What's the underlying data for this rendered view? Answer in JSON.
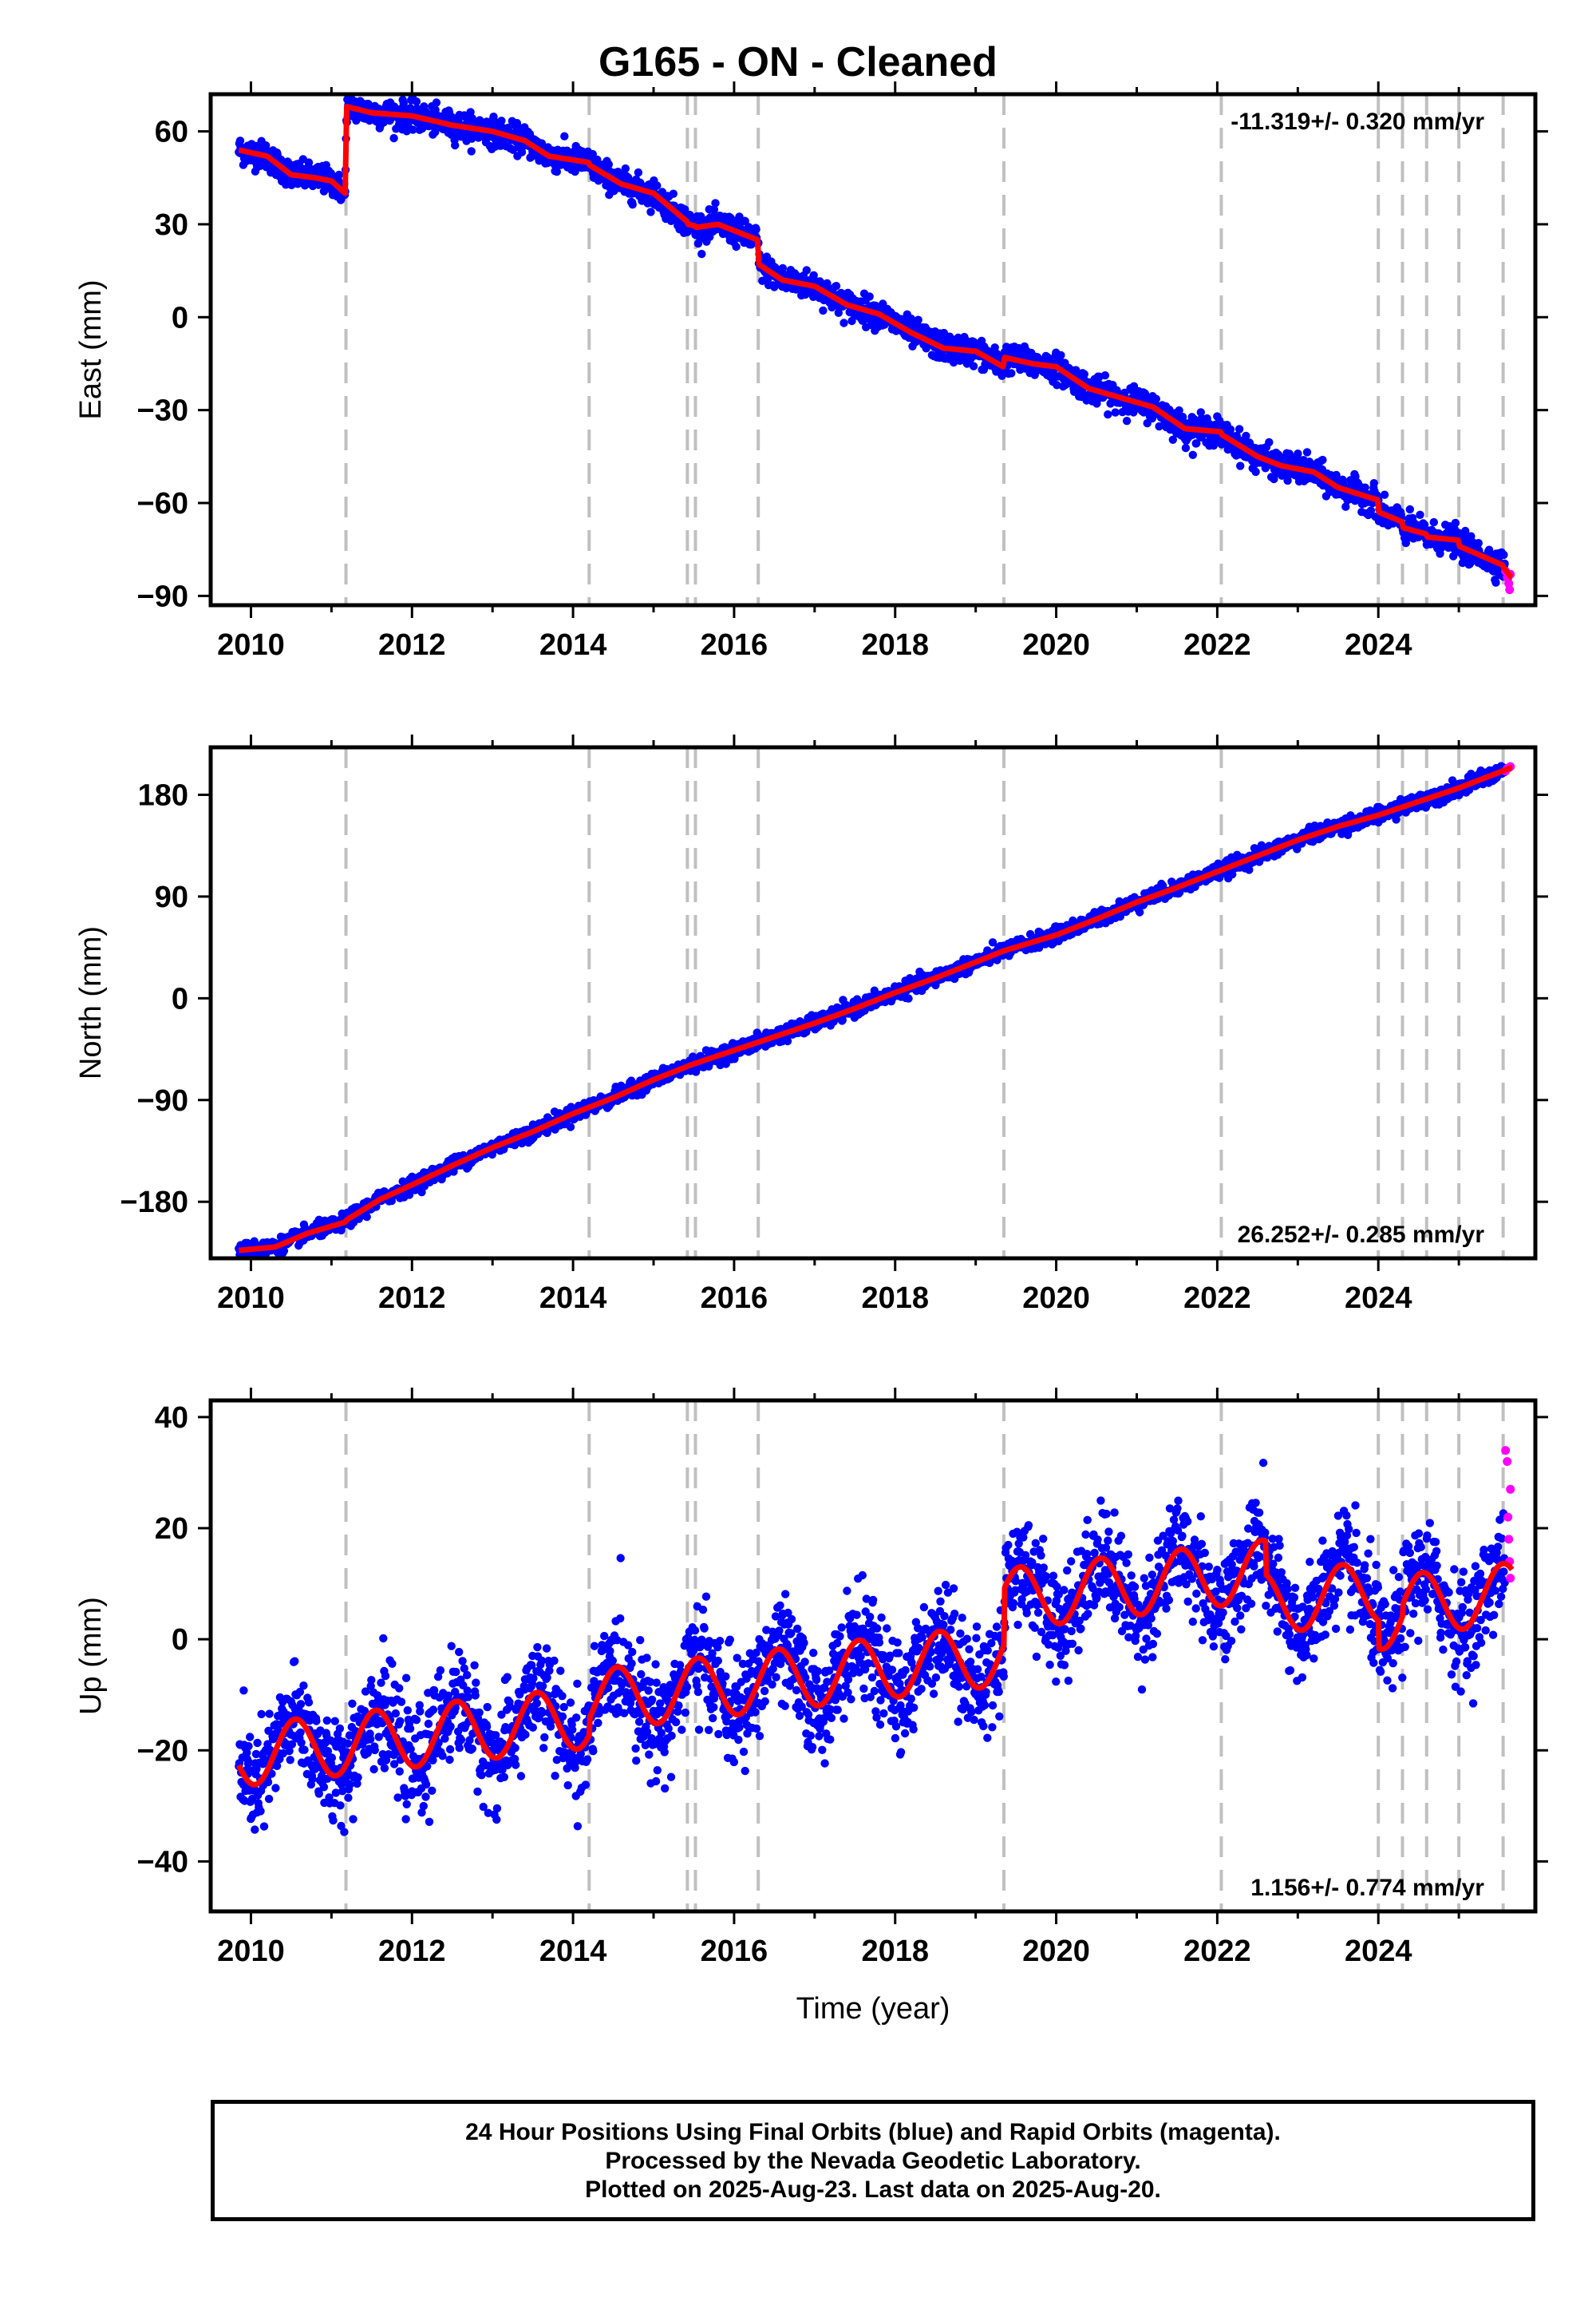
{
  "title": "G165  - ON - Cleaned",
  "footer": {
    "line1": "24 Hour Positions Using Final Orbits (blue) and Rapid Orbits (magenta).",
    "line2": "Processed by the Nevada Geodetic Laboratory.",
    "line3": "Plotted on 2025-Aug-23. Last data on 2025-Aug-20."
  },
  "colors": {
    "final": "#0000ff",
    "rapid": "#ff00ff",
    "model": "#ff0000",
    "events": "#c0c0c0"
  },
  "chart_data": [
    {
      "type": "scatter",
      "ylabel": "East (mm)",
      "rate": "-11.319+/- 0.320 mm/yr",
      "rate_position": "top-right",
      "xlim": [
        2009.5,
        2025.95
      ],
      "ylim": [
        -93,
        72
      ],
      "xticks": [
        2010,
        2012,
        2014,
        2016,
        2018,
        2020,
        2022,
        2024
      ],
      "xtick_labels": [
        "2010",
        "2012",
        "2014",
        "2016",
        "2018",
        "2020",
        "2022",
        "2024"
      ],
      "yticks": [
        60,
        30,
        0,
        -30,
        -60,
        -90
      ],
      "ytick_labels": [
        "60",
        "30",
        "0",
        "−30",
        "−60",
        "−90"
      ],
      "events": [
        2011.18,
        2014.2,
        2015.42,
        2015.52,
        2016.3,
        2019.35,
        2022.05,
        2024.0,
        2024.3,
        2024.6,
        2025.0,
        2025.55
      ],
      "model": [
        [
          2009.85,
          54
        ],
        [
          2010.2,
          52
        ],
        [
          2010.5,
          46
        ],
        [
          2010.8,
          45
        ],
        [
          2011.0,
          44
        ],
        [
          2011.17,
          40
        ],
        [
          2011.19,
          68
        ],
        [
          2011.5,
          66
        ],
        [
          2012.0,
          65
        ],
        [
          2012.5,
          62
        ],
        [
          2013.0,
          60
        ],
        [
          2013.4,
          57
        ],
        [
          2013.7,
          52
        ],
        [
          2014.19,
          50
        ],
        [
          2014.21,
          49
        ],
        [
          2014.6,
          43
        ],
        [
          2015.0,
          40
        ],
        [
          2015.41,
          31
        ],
        [
          2015.43,
          30
        ],
        [
          2015.51,
          29.5
        ],
        [
          2015.53,
          29
        ],
        [
          2015.8,
          30
        ],
        [
          2016.29,
          25
        ],
        [
          2016.31,
          17
        ],
        [
          2016.6,
          12
        ],
        [
          2017.0,
          10
        ],
        [
          2017.4,
          4
        ],
        [
          2017.8,
          1
        ],
        [
          2018.2,
          -5
        ],
        [
          2018.6,
          -10
        ],
        [
          2019.0,
          -11
        ],
        [
          2019.34,
          -16
        ],
        [
          2019.36,
          -13
        ],
        [
          2019.7,
          -15
        ],
        [
          2020.0,
          -16
        ],
        [
          2020.4,
          -23
        ],
        [
          2020.8,
          -26
        ],
        [
          2021.2,
          -29
        ],
        [
          2021.6,
          -36
        ],
        [
          2022.04,
          -37
        ],
        [
          2022.06,
          -38
        ],
        [
          2022.5,
          -45
        ],
        [
          2022.8,
          -48
        ],
        [
          2023.2,
          -50
        ],
        [
          2023.5,
          -55
        ],
        [
          2023.99,
          -59
        ],
        [
          2024.01,
          -63
        ],
        [
          2024.29,
          -66
        ],
        [
          2024.31,
          -68
        ],
        [
          2024.59,
          -70
        ],
        [
          2024.61,
          -71
        ],
        [
          2024.99,
          -72
        ],
        [
          2025.01,
          -74
        ],
        [
          2025.54,
          -80
        ],
        [
          2025.56,
          -81
        ],
        [
          2025.65,
          -84
        ]
      ],
      "scatter_sigma": 2.2,
      "last_rapid": [
        [
          2025.58,
          -82
        ],
        [
          2025.6,
          -84
        ],
        [
          2025.62,
          -86
        ],
        [
          2025.63,
          -88
        ],
        [
          2025.64,
          -83
        ]
      ]
    },
    {
      "type": "scatter",
      "ylabel": "North (mm)",
      "rate": "26.252+/- 0.285 mm/yr",
      "rate_position": "bottom-right",
      "xlim": [
        2009.5,
        2025.95
      ],
      "ylim": [
        -230,
        222
      ],
      "xticks": [
        2010,
        2012,
        2014,
        2016,
        2018,
        2020,
        2022,
        2024
      ],
      "xtick_labels": [
        "2010",
        "2012",
        "2014",
        "2016",
        "2018",
        "2020",
        "2022",
        "2024"
      ],
      "yticks": [
        180,
        90,
        0,
        -90,
        -180
      ],
      "ytick_labels": [
        "180",
        "90",
        "0",
        "−90",
        "−180"
      ],
      "events": [
        2011.18,
        2014.2,
        2015.42,
        2015.52,
        2016.3,
        2019.35,
        2022.05,
        2024.0,
        2024.3,
        2024.6,
        2025.0,
        2025.55
      ],
      "model": [
        [
          2009.85,
          -223
        ],
        [
          2010.3,
          -220
        ],
        [
          2010.7,
          -208
        ],
        [
          2011.17,
          -198
        ],
        [
          2011.19,
          -196
        ],
        [
          2011.6,
          -178
        ],
        [
          2012.0,
          -165
        ],
        [
          2012.5,
          -148
        ],
        [
          2013.0,
          -132
        ],
        [
          2013.5,
          -118
        ],
        [
          2014.0,
          -102
        ],
        [
          2014.5,
          -88
        ],
        [
          2015.0,
          -72
        ],
        [
          2015.5,
          -58
        ],
        [
          2016.0,
          -46
        ],
        [
          2016.5,
          -34
        ],
        [
          2017.0,
          -22
        ],
        [
          2017.5,
          -9
        ],
        [
          2018.0,
          5
        ],
        [
          2018.5,
          18
        ],
        [
          2019.0,
          32
        ],
        [
          2019.35,
          42
        ],
        [
          2020.0,
          56
        ],
        [
          2020.5,
          70
        ],
        [
          2021.0,
          85
        ],
        [
          2021.5,
          98
        ],
        [
          2022.0,
          112
        ],
        [
          2022.5,
          126
        ],
        [
          2023.0,
          140
        ],
        [
          2023.5,
          152
        ],
        [
          2024.0,
          162
        ],
        [
          2024.5,
          174
        ],
        [
          2025.0,
          186
        ],
        [
          2025.65,
          204
        ]
      ],
      "scatter_sigma": 3.2,
      "last_rapid": [
        [
          2025.58,
          201
        ],
        [
          2025.6,
          203
        ],
        [
          2025.62,
          204
        ],
        [
          2025.64,
          205
        ]
      ]
    },
    {
      "type": "scatter",
      "ylabel": "Up (mm)",
      "xlabel": "Time (year)",
      "rate": "1.156+/- 0.774 mm/yr",
      "rate_position": "bottom-right",
      "xlim": [
        2009.5,
        2025.95
      ],
      "ylim": [
        -49,
        43
      ],
      "xticks": [
        2010,
        2012,
        2014,
        2016,
        2018,
        2020,
        2022,
        2024
      ],
      "xtick_labels": [
        "2010",
        "2012",
        "2014",
        "2016",
        "2018",
        "2020",
        "2022",
        "2024"
      ],
      "yticks": [
        40,
        20,
        0,
        -20,
        -40
      ],
      "ytick_labels": [
        "40",
        "20",
        "0",
        "−20",
        "−40"
      ],
      "events": [
        2011.18,
        2014.2,
        2015.42,
        2015.52,
        2016.3,
        2019.35,
        2022.05,
        2024.0,
        2024.3,
        2024.6,
        2025.0,
        2025.55
      ],
      "model_trend": {
        "start": [
          2009.85,
          -21
        ],
        "slope": 1.6
      },
      "model_seasonal_amplitude": 5.5,
      "model_offsets": [
        [
          2014.2,
          3
        ],
        [
          2019.35,
          10
        ],
        [
          2022.6,
          -6
        ],
        [
          2024.0,
          -5
        ],
        [
          2024.3,
          2
        ]
      ],
      "scatter_sigma": 4.6,
      "last_rapid": [
        [
          2025.58,
          34
        ],
        [
          2025.6,
          32
        ],
        [
          2025.61,
          22
        ],
        [
          2025.62,
          18
        ],
        [
          2025.63,
          14
        ],
        [
          2025.64,
          11
        ],
        [
          2025.64,
          27
        ]
      ]
    }
  ]
}
